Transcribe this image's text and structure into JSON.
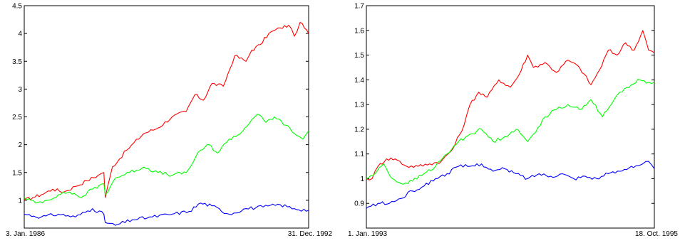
{
  "chart_data": [
    {
      "type": "line",
      "x_labels": [
        "3. Jan. 1986",
        "31. Dec. 1992"
      ],
      "ylim": [
        0.5,
        4.5
      ],
      "yticks": [
        "1",
        "1.5",
        "2",
        "2.5",
        "3",
        "3.5",
        "4",
        "4.5"
      ],
      "grid": false,
      "legend": "none",
      "series": [
        {
          "color": "#ff0000",
          "x": [
            0,
            0.03,
            0.06,
            0.1,
            0.14,
            0.18,
            0.22,
            0.26,
            0.28,
            0.285,
            0.31,
            0.36,
            0.42,
            0.47,
            0.52,
            0.57,
            0.6,
            0.63,
            0.66,
            0.7,
            0.74,
            0.78,
            0.8,
            0.83,
            0.86,
            0.9,
            0.93,
            0.95,
            0.97,
            1.0
          ],
          "y": [
            1.0,
            1.05,
            1.1,
            1.2,
            1.15,
            1.25,
            1.35,
            1.45,
            1.5,
            1.05,
            1.6,
            1.9,
            2.2,
            2.3,
            2.5,
            2.6,
            2.9,
            2.8,
            3.1,
            3.05,
            3.6,
            3.5,
            3.7,
            3.8,
            4.0,
            4.1,
            4.15,
            3.95,
            4.2,
            4.0
          ]
        },
        {
          "color": "#00ff00",
          "x": [
            0,
            0.04,
            0.08,
            0.12,
            0.16,
            0.2,
            0.24,
            0.28,
            0.285,
            0.32,
            0.37,
            0.42,
            0.47,
            0.52,
            0.57,
            0.62,
            0.65,
            0.68,
            0.72,
            0.76,
            0.8,
            0.82,
            0.85,
            0.88,
            0.92,
            0.95,
            0.98,
            1.0
          ],
          "y": [
            1.05,
            0.95,
            1.0,
            1.1,
            1.15,
            1.05,
            1.2,
            1.3,
            1.1,
            1.4,
            1.5,
            1.6,
            1.5,
            1.45,
            1.5,
            1.9,
            2.0,
            1.85,
            2.1,
            2.2,
            2.45,
            2.55,
            2.4,
            2.5,
            2.35,
            2.2,
            2.1,
            2.25
          ]
        },
        {
          "color": "#0000ff",
          "x": [
            0,
            0.06,
            0.12,
            0.18,
            0.24,
            0.28,
            0.285,
            0.32,
            0.38,
            0.45,
            0.52,
            0.58,
            0.62,
            0.66,
            0.72,
            0.78,
            0.84,
            0.9,
            0.95,
            1.0
          ],
          "y": [
            0.75,
            0.7,
            0.75,
            0.7,
            0.85,
            0.75,
            0.6,
            0.55,
            0.65,
            0.7,
            0.75,
            0.8,
            0.95,
            0.9,
            0.75,
            0.85,
            0.88,
            0.92,
            0.85,
            0.82
          ]
        }
      ]
    },
    {
      "type": "line",
      "x_labels": [
        "1. Jan. 1993",
        "18. Oct. 1995"
      ],
      "ylim": [
        0.8,
        1.7
      ],
      "yticks": [
        "0.9",
        "1",
        "1.1",
        "1.2",
        "1.3",
        "1.4",
        "1.5",
        "1.6",
        "1.7"
      ],
      "grid": false,
      "legend": "none",
      "series": [
        {
          "color": "#ff0000",
          "x": [
            0,
            0.02,
            0.04,
            0.07,
            0.1,
            0.14,
            0.18,
            0.22,
            0.26,
            0.3,
            0.34,
            0.36,
            0.39,
            0.42,
            0.46,
            0.5,
            0.53,
            0.56,
            0.58,
            0.62,
            0.66,
            0.7,
            0.74,
            0.78,
            0.81,
            0.84,
            0.87,
            0.9,
            0.93,
            0.96,
            0.98,
            1.0
          ],
          "y": [
            1.0,
            1.0,
            1.05,
            1.08,
            1.08,
            1.05,
            1.05,
            1.06,
            1.07,
            1.12,
            1.22,
            1.3,
            1.35,
            1.33,
            1.4,
            1.37,
            1.42,
            1.5,
            1.45,
            1.47,
            1.43,
            1.48,
            1.45,
            1.38,
            1.44,
            1.52,
            1.5,
            1.55,
            1.52,
            1.6,
            1.52,
            1.51
          ]
        },
        {
          "color": "#00ff00",
          "x": [
            0,
            0.03,
            0.06,
            0.09,
            0.12,
            0.16,
            0.2,
            0.24,
            0.28,
            0.32,
            0.36,
            0.4,
            0.44,
            0.48,
            0.52,
            0.56,
            0.58,
            0.62,
            0.66,
            0.7,
            0.74,
            0.78,
            0.82,
            0.85,
            0.88,
            0.92,
            0.95,
            0.98,
            1.0
          ],
          "y": [
            1.0,
            1.02,
            1.06,
            1.0,
            0.98,
            0.99,
            1.02,
            1.05,
            1.1,
            1.15,
            1.18,
            1.2,
            1.15,
            1.17,
            1.2,
            1.15,
            1.18,
            1.25,
            1.28,
            1.3,
            1.28,
            1.32,
            1.25,
            1.3,
            1.35,
            1.38,
            1.4,
            1.39,
            1.39
          ]
        },
        {
          "color": "#0000ff",
          "x": [
            0,
            0.04,
            0.08,
            0.12,
            0.16,
            0.2,
            0.24,
            0.28,
            0.32,
            0.36,
            0.4,
            0.44,
            0.48,
            0.52,
            0.56,
            0.6,
            0.64,
            0.68,
            0.72,
            0.76,
            0.8,
            0.84,
            0.88,
            0.92,
            0.96,
            0.98,
            1.0
          ],
          "y": [
            0.88,
            0.9,
            0.9,
            0.92,
            0.95,
            0.97,
            1.0,
            1.02,
            1.05,
            1.05,
            1.06,
            1.03,
            1.04,
            1.02,
            1.0,
            1.02,
            1.01,
            1.02,
            1.0,
            1.01,
            1.0,
            1.02,
            1.03,
            1.05,
            1.06,
            1.07,
            1.04
          ]
        }
      ]
    }
  ]
}
